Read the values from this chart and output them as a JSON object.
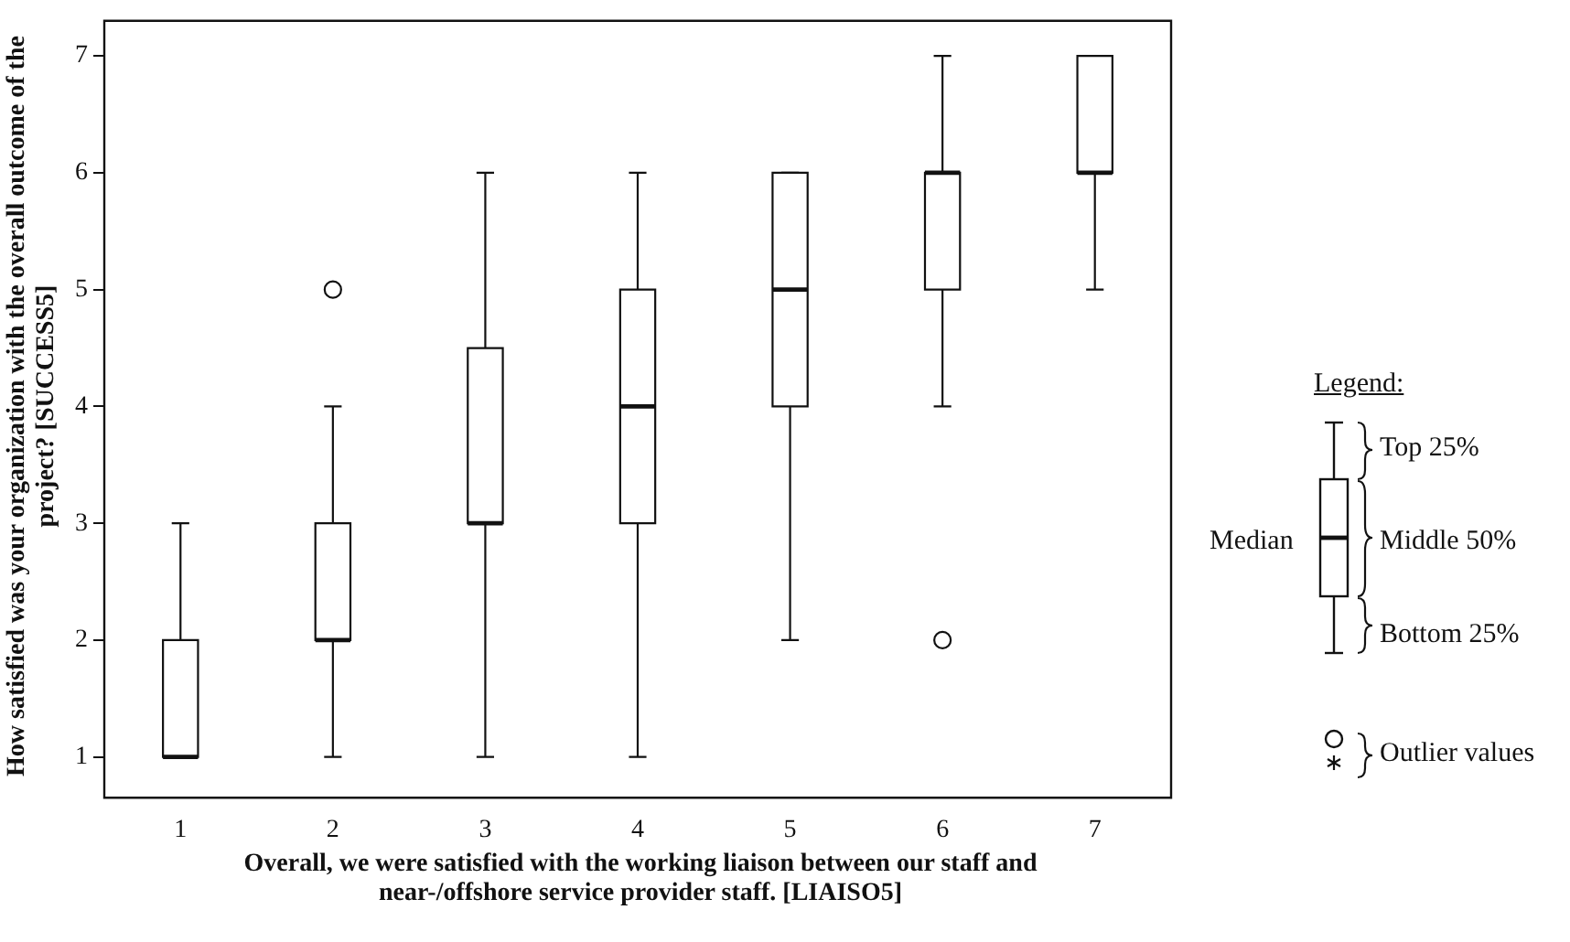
{
  "chart_data": {
    "type": "box",
    "xlabel": "Overall, we were satisfied with the working liaison between our staff and near-/offshore service provider staff. [LIAISO5]",
    "ylabel": "How satisfied was your organization with the overall outcome of the project? [SUCCESS5]",
    "categories": [
      "1",
      "2",
      "3",
      "4",
      "5",
      "6",
      "7"
    ],
    "boxes": [
      {
        "low": 1,
        "q1": 1,
        "median": 1,
        "q3": 2,
        "high": 3
      },
      {
        "low": 1,
        "q1": 2,
        "median": 2,
        "q3": 3,
        "high": 4,
        "outliers": [
          5
        ]
      },
      {
        "low": 1,
        "q1": 3,
        "median": 3,
        "q3": 4.5,
        "high": 6
      },
      {
        "low": 1,
        "q1": 3,
        "median": 4,
        "q3": 5,
        "high": 6
      },
      {
        "low": 2,
        "q1": 4,
        "median": 5,
        "q3": 6,
        "high": 6
      },
      {
        "low": 4,
        "q1": 5,
        "median": 6,
        "q3": 6,
        "high": 7,
        "outliers": [
          2
        ]
      },
      {
        "low": 5,
        "q1": 6,
        "median": 6,
        "q3": 7,
        "high": 7
      }
    ],
    "ylim": [
      0.65,
      7.3
    ],
    "yticks": [
      1,
      2,
      3,
      4,
      5,
      6,
      7
    ],
    "grid": false,
    "annotations": [
      "Legend:",
      "Top 25%",
      "Median",
      "Middle 50%",
      "Bottom 25%",
      "Outlier values"
    ]
  }
}
